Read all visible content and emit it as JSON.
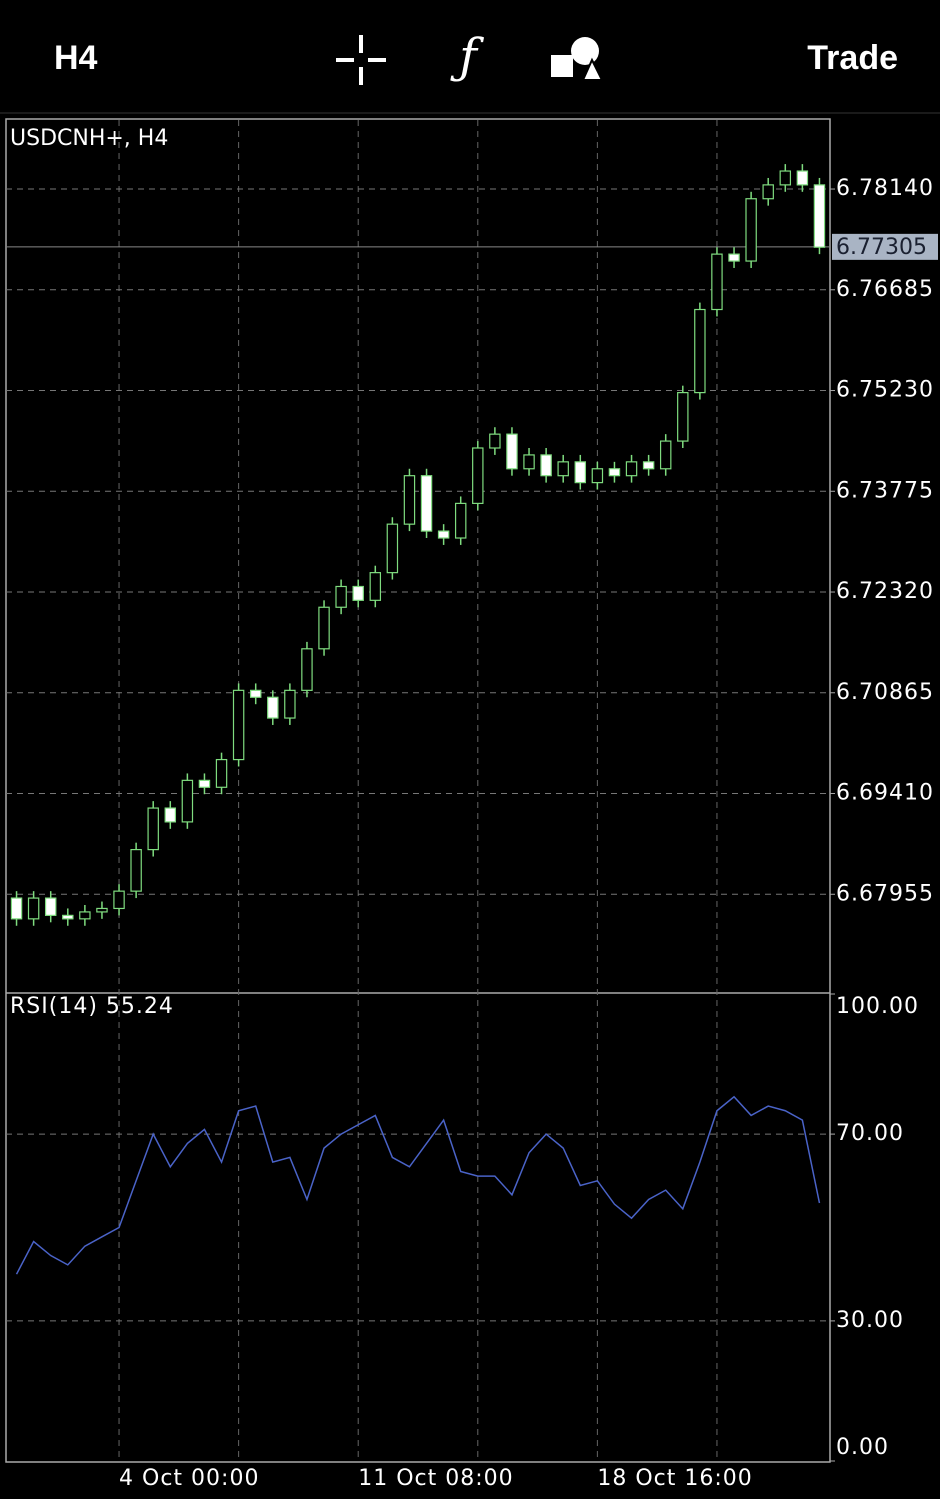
{
  "header": {
    "timeframe": "H4",
    "action": "Trade"
  },
  "chart_data": [
    {
      "type": "candlestick",
      "title": "USDCNH+, H4",
      "up_color": "#7fdc7f",
      "down_color": "#ffffff",
      "grid": true,
      "open": [
        6.679,
        6.676,
        6.679,
        6.6765,
        6.676,
        6.677,
        6.6775,
        6.68,
        6.686,
        6.692,
        6.69,
        6.696,
        6.695,
        6.699,
        6.709,
        6.708,
        6.705,
        6.709,
        6.715,
        6.721,
        6.724,
        6.722,
        6.726,
        6.733,
        6.74,
        6.732,
        6.731,
        6.736,
        6.744,
        6.746,
        6.741,
        6.743,
        6.74,
        6.742,
        6.739,
        6.741,
        6.74,
        6.742,
        6.741,
        6.745,
        6.752,
        6.764,
        6.772,
        6.771,
        6.78,
        6.782,
        6.784,
        6.782
      ],
      "high": [
        6.68,
        6.68,
        6.68,
        6.6775,
        6.678,
        6.6785,
        6.681,
        6.687,
        6.693,
        6.693,
        6.697,
        6.697,
        6.7,
        6.71,
        6.71,
        6.709,
        6.71,
        6.716,
        6.722,
        6.725,
        6.725,
        6.727,
        6.734,
        6.741,
        6.741,
        6.733,
        6.737,
        6.745,
        6.747,
        6.747,
        6.744,
        6.744,
        6.743,
        6.743,
        6.742,
        6.742,
        6.743,
        6.743,
        6.746,
        6.753,
        6.765,
        6.773,
        6.773,
        6.781,
        6.783,
        6.785,
        6.785,
        6.783
      ],
      "low": [
        6.675,
        6.675,
        6.6755,
        6.675,
        6.675,
        6.676,
        6.6765,
        6.679,
        6.685,
        6.689,
        6.689,
        6.694,
        6.694,
        6.698,
        6.707,
        6.704,
        6.704,
        6.708,
        6.714,
        6.72,
        6.721,
        6.721,
        6.725,
        6.732,
        6.731,
        6.73,
        6.73,
        6.735,
        6.743,
        6.74,
        6.74,
        6.739,
        6.739,
        6.738,
        6.738,
        6.739,
        6.739,
        6.74,
        6.74,
        6.744,
        6.751,
        6.763,
        6.77,
        6.77,
        6.779,
        6.781,
        6.781,
        6.772
      ],
      "close": [
        6.676,
        6.679,
        6.6765,
        6.676,
        6.677,
        6.6775,
        6.68,
        6.686,
        6.692,
        6.69,
        6.696,
        6.695,
        6.699,
        6.709,
        6.708,
        6.705,
        6.709,
        6.715,
        6.721,
        6.724,
        6.722,
        6.726,
        6.733,
        6.74,
        6.732,
        6.731,
        6.736,
        6.744,
        6.746,
        6.741,
        6.743,
        6.74,
        6.742,
        6.739,
        6.741,
        6.74,
        6.742,
        6.741,
        6.745,
        6.752,
        6.764,
        6.772,
        6.771,
        6.78,
        6.782,
        6.784,
        6.782,
        6.773
      ],
      "current_price": 6.77305,
      "ylim": [
        6.66529,
        6.79137
      ],
      "yticks": [
        {
          "value": 6.7814,
          "label": "6.78140"
        },
        {
          "value": 6.76685,
          "label": "6.76685"
        },
        {
          "value": 6.7523,
          "label": "6.75230"
        },
        {
          "value": 6.73775,
          "label": "6.73775"
        },
        {
          "value": 6.7232,
          "label": "6.72320"
        },
        {
          "value": 6.70865,
          "label": "6.70865"
        },
        {
          "value": 6.6941,
          "label": "6.69410"
        },
        {
          "value": 6.67955,
          "label": "6.67955"
        }
      ]
    },
    {
      "type": "line",
      "title": "RSI(14) 55.24",
      "color": "#4a63c8",
      "grid": true,
      "categories": [
        null,
        null,
        null,
        null,
        null,
        null,
        "4 Oct 00:00",
        null,
        null,
        null,
        null,
        null,
        null,
        null,
        null,
        null,
        null,
        null,
        null,
        null,
        "11 Oct 08:00",
        null,
        null,
        null,
        null,
        null,
        null,
        null,
        null,
        null,
        null,
        null,
        null,
        null,
        "18 Oct 16:00",
        null,
        null,
        null,
        null,
        null,
        null,
        null,
        null,
        null,
        null,
        null,
        null,
        null
      ],
      "values": [
        40,
        47,
        44,
        42,
        46,
        48,
        50,
        60,
        70,
        63,
        68,
        71,
        64,
        75,
        76,
        64,
        65,
        56,
        67,
        70,
        72,
        74,
        65,
        63,
        68,
        73,
        62,
        61,
        61,
        57,
        66,
        70,
        67,
        59,
        60,
        55,
        52,
        56,
        58,
        54,
        64,
        75,
        78,
        74,
        76,
        75,
        73,
        55.24
      ],
      "ylim": [
        0,
        100
      ],
      "yticks": [
        {
          "value": 100,
          "label": "100.00"
        },
        {
          "value": 70,
          "label": "70.00"
        },
        {
          "value": 30,
          "label": "30.00"
        },
        {
          "value": 0,
          "label": "0.00"
        }
      ]
    }
  ]
}
